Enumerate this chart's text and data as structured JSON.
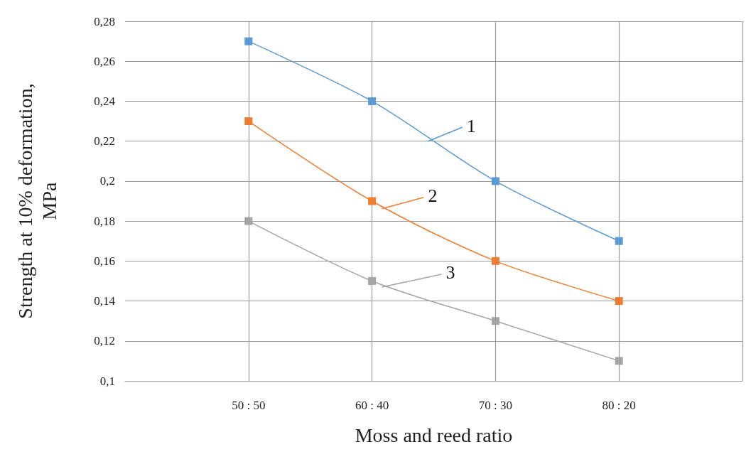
{
  "chart_data": {
    "type": "line",
    "xlabel": "Moss and reed ratio",
    "ylabel": "Strength at 10% deformation,\nMPa",
    "categories": [
      null,
      "50 : 50",
      "60 : 40",
      "70 : 30",
      "80 : 20",
      null
    ],
    "series": [
      {
        "name": "1",
        "color": "#5b9bd5",
        "values": [
          null,
          0.27,
          0.24,
          0.2,
          0.17,
          null
        ]
      },
      {
        "name": "2",
        "color": "#ed7d31",
        "values": [
          null,
          0.23,
          0.19,
          0.16,
          0.14,
          null
        ]
      },
      {
        "name": "3",
        "color": "#a5a5a5",
        "values": [
          null,
          0.18,
          0.15,
          0.13,
          0.11,
          null
        ]
      }
    ],
    "ylim": [
      0.1,
      0.28
    ],
    "yticks": [
      {
        "value": 0.1,
        "label": "0,1"
      },
      {
        "value": 0.12,
        "label": "0,12"
      },
      {
        "value": 0.14,
        "label": "0,14"
      },
      {
        "value": 0.16,
        "label": "0,16"
      },
      {
        "value": 0.18,
        "label": "0,18"
      },
      {
        "value": 0.2,
        "label": "0,2"
      },
      {
        "value": 0.22,
        "label": "0,22"
      },
      {
        "value": 0.24,
        "label": "0,24"
      },
      {
        "value": 0.26,
        "label": "0,26"
      },
      {
        "value": 0.28,
        "label": "0,28"
      }
    ],
    "grid": true,
    "legend": "center",
    "marker": "square",
    "line_style": "solid"
  }
}
